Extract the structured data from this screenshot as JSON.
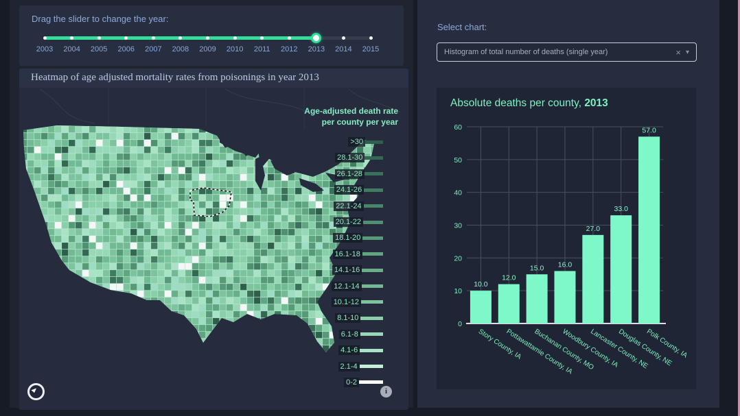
{
  "year_slider": {
    "label": "Drag the slider to change the year:",
    "years": [
      "2003",
      "2004",
      "2005",
      "2006",
      "2007",
      "2008",
      "2009",
      "2010",
      "2011",
      "2012",
      "2013",
      "2014",
      "2015"
    ],
    "selected_year": "2013",
    "active_color": "#35dd9b"
  },
  "map_panel": {
    "title": "Heatmap of age adjusted mortality rates from poisonings in year 2013",
    "legend_title_line1": "Age-adjusted death rate",
    "legend_title_line2": "per county per year",
    "legend": [
      {
        "label": ">30",
        "color": "#2d5f4b"
      },
      {
        "label": "28.1-30",
        "color": "#336852"
      },
      {
        "label": "26.1-28",
        "color": "#397258"
      },
      {
        "label": "24.1-26",
        "color": "#407c60"
      },
      {
        "label": "22.1-24",
        "color": "#478667"
      },
      {
        "label": "20.1-22",
        "color": "#4e906f"
      },
      {
        "label": "18.1-20",
        "color": "#569a77"
      },
      {
        "label": "16.1-18",
        "color": "#5fa580"
      },
      {
        "label": "14.1-16",
        "color": "#68af89"
      },
      {
        "label": "12.1-14",
        "color": "#72ba93"
      },
      {
        "label": "10.1-12",
        "color": "#7dc49e"
      },
      {
        "label": "8.1-10",
        "color": "#89cfaa"
      },
      {
        "label": "6.1-8",
        "color": "#97d9b7"
      },
      {
        "label": "4.1-6",
        "color": "#a9e3c6"
      },
      {
        "label": "2.1-4",
        "color": "#c3eeda"
      },
      {
        "label": "0-2",
        "color": "#ffffff"
      }
    ],
    "info_icon_glyph": "i"
  },
  "chart_panel": {
    "select_label": "Select chart:",
    "dropdown_value": "Histogram of total number of deaths (single year)",
    "clear_icon": "×",
    "caret_icon": "▾"
  },
  "chart_data": {
    "type": "bar",
    "title_prefix": "Absolute deaths per county, ",
    "title_year": "2013",
    "categories": [
      "Story County, IA",
      "Pottawattamie County, IA",
      "Buchanan County, MO",
      "Woodbury County, IA",
      "Lancaster County, NE",
      "Douglas County, NE",
      "Polk County, IA"
    ],
    "values": [
      10.0,
      12.0,
      15.0,
      16.0,
      27.0,
      33.0,
      57.0
    ],
    "ylim": [
      0,
      60
    ],
    "yticks": [
      0,
      10,
      20,
      30,
      40,
      50,
      60
    ],
    "bar_color": "#7ff8c9",
    "grid": true,
    "legend_position": "none"
  }
}
